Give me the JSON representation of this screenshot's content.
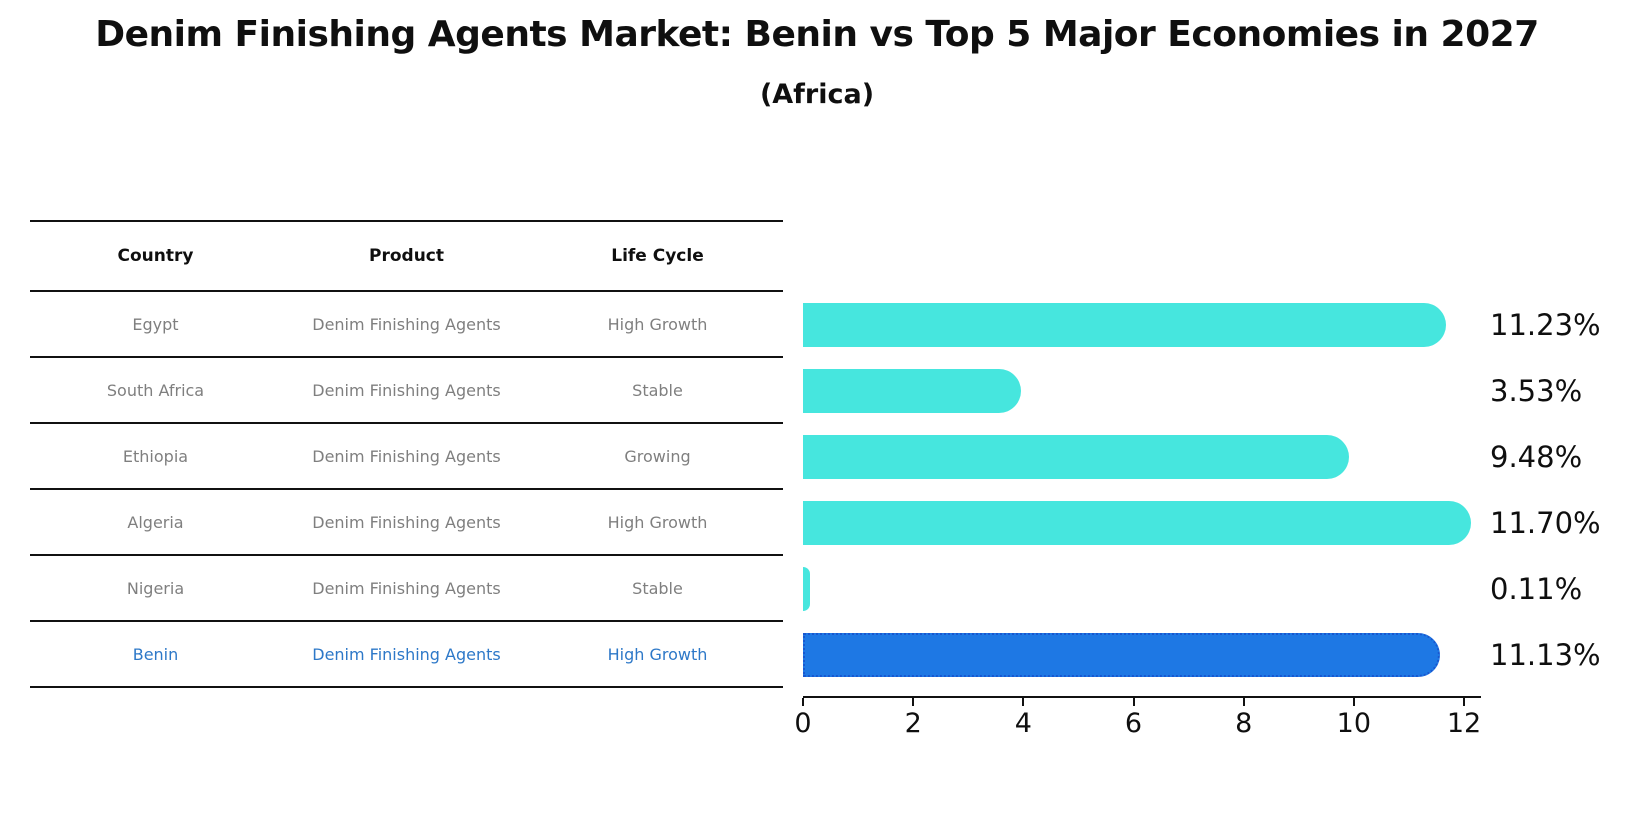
{
  "table": {
    "headers": [
      "Country",
      "Product",
      "Life Cycle"
    ],
    "rows": [
      {
        "country": "Egypt",
        "product": "Denim Finishing Agents",
        "life_cycle": "High Growth",
        "highlight": false
      },
      {
        "country": "South Africa",
        "product": "Denim Finishing Agents",
        "life_cycle": "Stable",
        "highlight": false
      },
      {
        "country": "Ethiopia",
        "product": "Denim Finishing Agents",
        "life_cycle": "Growing",
        "highlight": false
      },
      {
        "country": "Algeria",
        "product": "Denim Finishing Agents",
        "life_cycle": "High Growth",
        "highlight": false
      },
      {
        "country": "Nigeria",
        "product": "Denim Finishing Agents",
        "life_cycle": "Stable",
        "highlight": false
      },
      {
        "country": "Benin",
        "product": "Denim Finishing Agents",
        "life_cycle": "High Growth",
        "highlight": true
      }
    ]
  },
  "chart_data": {
    "type": "bar",
    "orientation": "horizontal",
    "title": "Denim Finishing Agents Market: Benin vs Top 5 Major Economies in 2027",
    "subtitle": "(Africa)",
    "categories": [
      "Egypt",
      "South Africa",
      "Ethiopia",
      "Algeria",
      "Nigeria",
      "Benin"
    ],
    "values": [
      11.23,
      3.53,
      9.48,
      11.7,
      0.11,
      11.13
    ],
    "value_labels": [
      "11.23%",
      "3.53%",
      "9.48%",
      "11.70%",
      "0.11%",
      "11.13%"
    ],
    "xlabel": "",
    "ylabel": "",
    "xlim": [
      0,
      12
    ],
    "xticks": [
      0,
      2,
      4,
      6,
      8,
      10,
      12
    ],
    "grid": false,
    "legend": false,
    "bar_color": "#46e6de",
    "highlight_bar_color": "#1e78e4",
    "highlight_index": 5
  },
  "colors": {
    "title_text": "#0f0f0f",
    "table_header_text": "#0f0f0f",
    "table_row_text": "#7f7f7f",
    "highlight_row_text": "#2d78c8",
    "axis": "#111111",
    "bar": "#46e6de",
    "highlight_bar": "#1e78e4"
  }
}
